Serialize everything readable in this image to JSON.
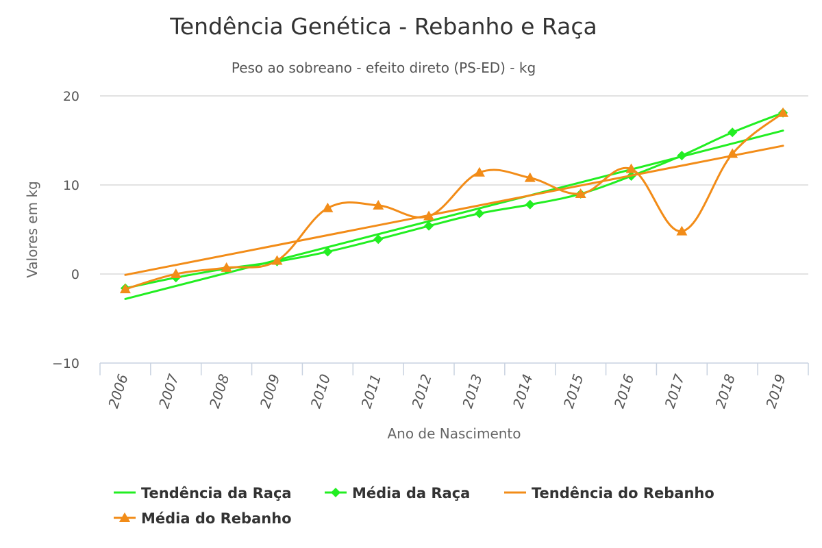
{
  "chart_data": {
    "type": "line",
    "title": "Tendência Genética - Rebanho e Raça",
    "subtitle": "Peso ao sobreano - efeito direto (PS-ED) - kg",
    "xlabel": "Ano de Nascimento",
    "ylabel": "Valores em kg",
    "categories": [
      "2006",
      "2007",
      "2008",
      "2009",
      "2010",
      "2011",
      "2012",
      "2013",
      "2014",
      "2015",
      "2016",
      "2017",
      "2018",
      "2019"
    ],
    "y_ticks": [
      -10,
      0,
      10,
      20
    ],
    "ylim": [
      -10,
      20
    ],
    "grid": true,
    "legend_position": "bottom-left",
    "series": [
      {
        "name": "Tendência da Raça",
        "kind": "trend",
        "color": "#22ee22",
        "marker": "none",
        "values": [
          -2.8,
          -1.4,
          0.1,
          1.5,
          2.9,
          4.3,
          5.8,
          7.2,
          8.6,
          10.0,
          11.5,
          12.9,
          14.3,
          16.1
        ]
      },
      {
        "name": "Média da Raça",
        "kind": "smooth",
        "color": "#22ee22",
        "marker": "diamond",
        "values": [
          -1.6,
          -0.4,
          0.6,
          1.4,
          2.5,
          3.9,
          5.4,
          6.8,
          7.8,
          9.0,
          11.0,
          13.3,
          15.9,
          18.1
        ]
      },
      {
        "name": "Tendência do Rebanho",
        "kind": "trend",
        "color": "#f28c18",
        "marker": "none",
        "values": [
          -0.1,
          0.9,
          2.0,
          3.1,
          4.2,
          5.2,
          6.3,
          7.4,
          8.6,
          9.7,
          10.9,
          12.1,
          13.3,
          14.4
        ]
      },
      {
        "name": "Média do Rebanho",
        "kind": "smooth",
        "color": "#f28c18",
        "marker": "triangle",
        "values": [
          -1.7,
          0.0,
          0.7,
          1.5,
          7.4,
          7.7,
          6.5,
          11.4,
          10.8,
          9.0,
          11.8,
          4.8,
          13.5,
          18.1
        ]
      }
    ]
  }
}
